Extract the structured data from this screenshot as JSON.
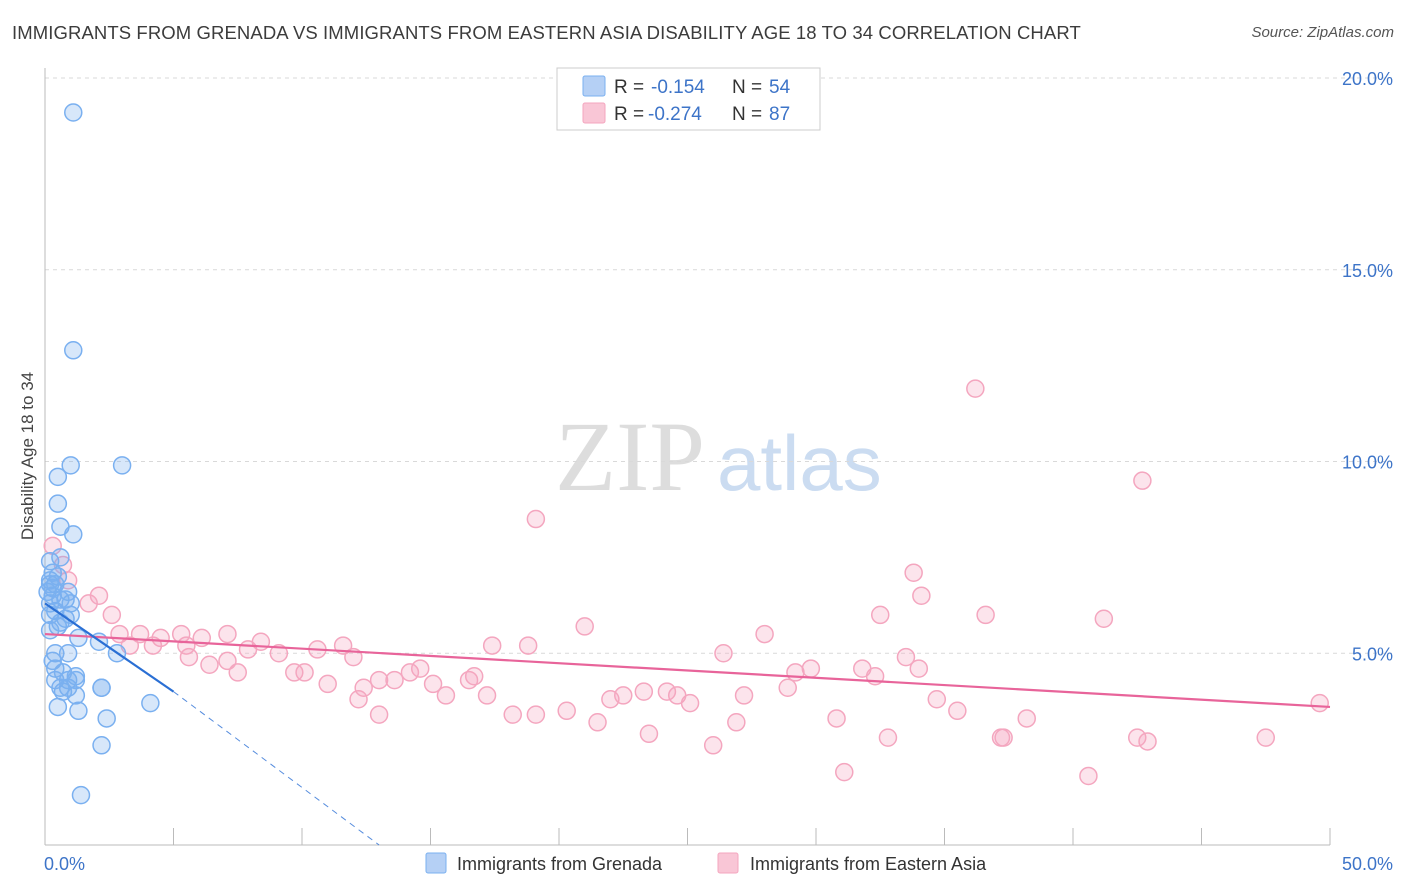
{
  "chart_data": {
    "type": "scatter",
    "title": "IMMIGRANTS FROM GRENADA VS IMMIGRANTS FROM EASTERN ASIA DISABILITY AGE 18 TO 34 CORRELATION CHART",
    "source": "Source: ZipAtlas.com",
    "ylabel": "Disability Age 18 to 34",
    "xlabel": "",
    "xlim": [
      0,
      50
    ],
    "ylim": [
      0,
      20
    ],
    "x_tick_labels": [
      "0.0%",
      "50.0%"
    ],
    "y_ticks": [
      5,
      10,
      15,
      20
    ],
    "y_tick_labels": [
      "5.0%",
      "10.0%",
      "15.0%",
      "20.0%"
    ],
    "watermark": {
      "part1": "ZIP",
      "part2": "atlas"
    },
    "legend": {
      "rows": [
        {
          "r_label": "R =",
          "r_value": "-0.154",
          "n_label": "N =",
          "n_value": "54"
        },
        {
          "r_label": "R =",
          "r_value": "-0.274",
          "n_label": "N =",
          "n_value": "87"
        }
      ]
    },
    "series": [
      {
        "name": "Immigrants from Grenada",
        "color": "#7ab0f0",
        "line_color": "#2a6fd4",
        "trend": {
          "x0": 0,
          "y0": 6.3,
          "x1": 5,
          "y1": 4.0,
          "dash_x1": 13,
          "dash_y1": 0.0
        },
        "points": [
          [
            1.1,
            19.1
          ],
          [
            1.1,
            12.9
          ],
          [
            1.0,
            9.9
          ],
          [
            3.0,
            9.9
          ],
          [
            0.5,
            9.6
          ],
          [
            0.5,
            8.9
          ],
          [
            0.6,
            8.3
          ],
          [
            1.1,
            8.1
          ],
          [
            0.6,
            7.5
          ],
          [
            0.2,
            7.4
          ],
          [
            0.3,
            7.1
          ],
          [
            0.2,
            6.8
          ],
          [
            0.4,
            6.8
          ],
          [
            0.9,
            6.6
          ],
          [
            0.1,
            6.6
          ],
          [
            0.3,
            6.5
          ],
          [
            0.6,
            6.4
          ],
          [
            0.2,
            6.3
          ],
          [
            1.0,
            6.3
          ],
          [
            0.4,
            6.1
          ],
          [
            1.0,
            6.0
          ],
          [
            0.8,
            5.9
          ],
          [
            0.5,
            5.7
          ],
          [
            0.2,
            5.6
          ],
          [
            1.3,
            5.4
          ],
          [
            2.1,
            5.3
          ],
          [
            2.8,
            5.0
          ],
          [
            0.4,
            5.0
          ],
          [
            0.9,
            5.0
          ],
          [
            0.3,
            4.8
          ],
          [
            0.4,
            4.6
          ],
          [
            0.7,
            4.5
          ],
          [
            0.4,
            4.3
          ],
          [
            0.9,
            4.3
          ],
          [
            1.2,
            4.4
          ],
          [
            1.2,
            4.3
          ],
          [
            0.6,
            4.1
          ],
          [
            0.7,
            4.0
          ],
          [
            0.9,
            4.1
          ],
          [
            1.2,
            3.9
          ],
          [
            2.2,
            4.1
          ],
          [
            2.2,
            4.1
          ],
          [
            0.5,
            3.6
          ],
          [
            4.1,
            3.7
          ],
          [
            1.3,
            3.5
          ],
          [
            2.4,
            3.3
          ],
          [
            2.2,
            2.6
          ],
          [
            1.4,
            1.3
          ],
          [
            0.2,
            6.9
          ],
          [
            0.5,
            7.0
          ],
          [
            0.3,
            6.7
          ],
          [
            0.8,
            6.4
          ],
          [
            0.2,
            6.0
          ],
          [
            0.6,
            5.8
          ]
        ]
      },
      {
        "name": "Immigrants from Eastern Asia",
        "color": "#f4a6bf",
        "line_color": "#e8649a",
        "trend": {
          "x0": 0,
          "y0": 5.5,
          "x1": 50,
          "y1": 3.6
        },
        "points": [
          [
            0.3,
            7.8
          ],
          [
            0.7,
            7.3
          ],
          [
            0.9,
            6.9
          ],
          [
            2.1,
            6.5
          ],
          [
            1.7,
            6.3
          ],
          [
            2.6,
            6.0
          ],
          [
            2.9,
            5.5
          ],
          [
            3.7,
            5.5
          ],
          [
            4.5,
            5.4
          ],
          [
            5.3,
            5.5
          ],
          [
            6.1,
            5.4
          ],
          [
            7.1,
            5.5
          ],
          [
            8.4,
            5.3
          ],
          [
            3.3,
            5.2
          ],
          [
            4.2,
            5.2
          ],
          [
            5.5,
            5.2
          ],
          [
            7.9,
            5.1
          ],
          [
            9.1,
            5.0
          ],
          [
            10.6,
            5.1
          ],
          [
            11.6,
            5.2
          ],
          [
            12.0,
            4.9
          ],
          [
            5.6,
            4.9
          ],
          [
            6.4,
            4.7
          ],
          [
            7.1,
            4.8
          ],
          [
            9.7,
            4.5
          ],
          [
            10.1,
            4.5
          ],
          [
            7.5,
            4.5
          ],
          [
            11.0,
            4.2
          ],
          [
            12.4,
            4.1
          ],
          [
            13.0,
            4.3
          ],
          [
            13.6,
            4.3
          ],
          [
            14.2,
            4.5
          ],
          [
            14.6,
            4.6
          ],
          [
            15.1,
            4.2
          ],
          [
            15.6,
            3.9
          ],
          [
            16.7,
            4.4
          ],
          [
            17.2,
            3.9
          ],
          [
            16.5,
            4.3
          ],
          [
            12.2,
            3.8
          ],
          [
            13.0,
            3.4
          ],
          [
            17.4,
            5.2
          ],
          [
            18.8,
            5.2
          ],
          [
            19.1,
            8.5
          ],
          [
            21.0,
            5.7
          ],
          [
            22.5,
            3.9
          ],
          [
            23.3,
            4.0
          ],
          [
            22.0,
            3.8
          ],
          [
            21.5,
            3.2
          ],
          [
            20.3,
            3.5
          ],
          [
            19.1,
            3.4
          ],
          [
            23.5,
            2.9
          ],
          [
            24.2,
            4.0
          ],
          [
            25.1,
            3.7
          ],
          [
            24.6,
            3.9
          ],
          [
            26.4,
            5.0
          ],
          [
            27.2,
            3.9
          ],
          [
            26.9,
            3.2
          ],
          [
            28.0,
            5.5
          ],
          [
            26.0,
            2.6
          ],
          [
            28.9,
            4.1
          ],
          [
            29.2,
            4.5
          ],
          [
            29.8,
            4.6
          ],
          [
            30.8,
            3.3
          ],
          [
            31.1,
            1.9
          ],
          [
            31.8,
            4.6
          ],
          [
            32.3,
            4.4
          ],
          [
            32.5,
            6.0
          ],
          [
            32.8,
            2.8
          ],
          [
            34.1,
            6.5
          ],
          [
            33.8,
            7.1
          ],
          [
            34.0,
            4.6
          ],
          [
            34.7,
            3.8
          ],
          [
            35.5,
            3.5
          ],
          [
            36.6,
            6.0
          ],
          [
            37.2,
            2.8
          ],
          [
            36.2,
            11.9
          ],
          [
            37.3,
            2.8
          ],
          [
            38.2,
            3.3
          ],
          [
            41.2,
            5.9
          ],
          [
            42.5,
            2.8
          ],
          [
            42.9,
            2.7
          ],
          [
            42.7,
            9.5
          ],
          [
            47.5,
            2.8
          ],
          [
            49.6,
            3.7
          ],
          [
            33.5,
            4.9
          ],
          [
            40.6,
            1.8
          ],
          [
            18.2,
            3.4
          ]
        ]
      }
    ]
  }
}
